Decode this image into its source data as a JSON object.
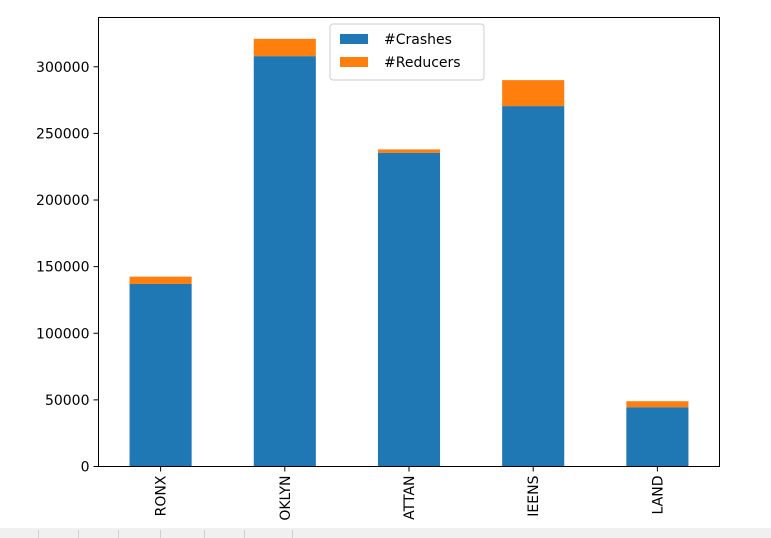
{
  "chart_data": {
    "type": "bar",
    "stacked": true,
    "categories": [
      "BRONX",
      "BROOKLYN",
      "MANHATTAN",
      "QUEENS",
      "STATEN ISLAND"
    ],
    "visible_category_labels": [
      "RONX",
      "OKLYN",
      "ATTAN",
      "IEENS",
      "LAND"
    ],
    "series": [
      {
        "name": "#Crashes",
        "color": "#1f77b4",
        "values": [
          137000,
          308000,
          235500,
          270500,
          44500
        ]
      },
      {
        "name": "#Reducers",
        "color": "#ff7f0e",
        "values": [
          5500,
          13000,
          2500,
          19500,
          4500
        ]
      }
    ],
    "ylim": [
      0,
      337000
    ],
    "yticks": [
      0,
      50000,
      100000,
      150000,
      200000,
      250000,
      300000
    ],
    "ytick_labels": [
      "0",
      "50000",
      "100000",
      "150000",
      "200000",
      "250000",
      "300000"
    ],
    "xlabel": "",
    "ylabel": "",
    "title": "",
    "legend": {
      "placement": "upper-center",
      "entries": [
        "#Crashes",
        "#Reducers"
      ]
    },
    "grid": false
  }
}
